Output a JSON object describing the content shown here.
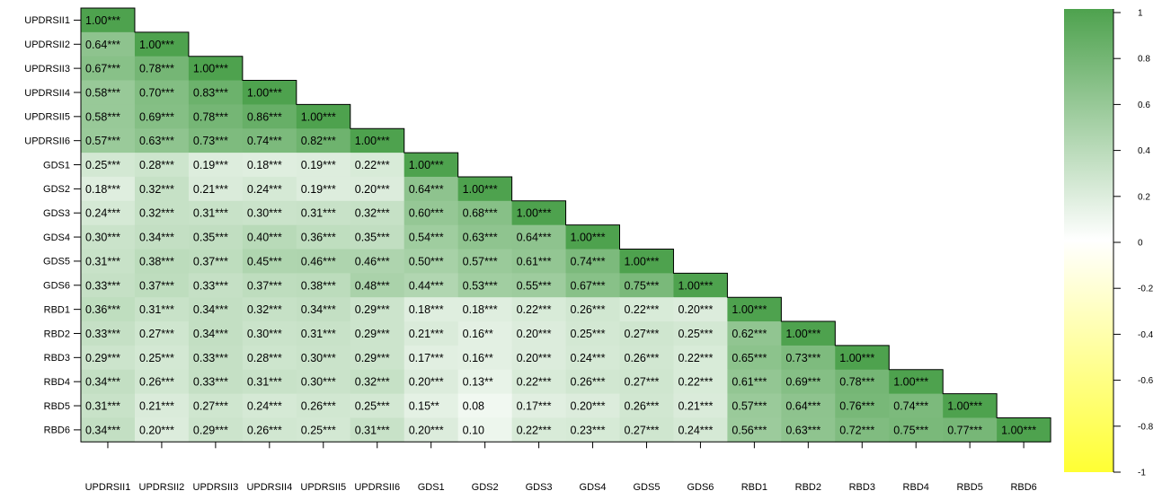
{
  "chart_data": {
    "type": "heatmap",
    "title": "",
    "layout": "lower-triangle",
    "row_labels": [
      "UPDRSII1",
      "UPDRSII2",
      "UPDRSII3",
      "UPDRSII4",
      "UPDRSII5",
      "UPDRSII6",
      "GDS1",
      "GDS2",
      "GDS3",
      "GDS4",
      "GDS5",
      "GDS6",
      "RBD1",
      "RBD2",
      "RBD3",
      "RBD4",
      "RBD5",
      "RBD6"
    ],
    "col_labels": [
      "UPDRSII1",
      "UPDRSII2",
      "UPDRSII3",
      "UPDRSII4",
      "UPDRSII5",
      "UPDRSII6",
      "GDS1",
      "GDS2",
      "GDS3",
      "GDS4",
      "GDS5",
      "GDS6",
      "RBD1",
      "RBD2",
      "RBD3",
      "RBD4",
      "RBD5",
      "RBD6"
    ],
    "cells": [
      [
        "1.00***"
      ],
      [
        "0.64***",
        "1.00***"
      ],
      [
        "0.67***",
        "0.78***",
        "1.00***"
      ],
      [
        "0.58***",
        "0.70***",
        "0.83***",
        "1.00***"
      ],
      [
        "0.58***",
        "0.69***",
        "0.78***",
        "0.86***",
        "1.00***"
      ],
      [
        "0.57***",
        "0.63***",
        "0.73***",
        "0.74***",
        "0.82***",
        "1.00***"
      ],
      [
        "0.25***",
        "0.28***",
        "0.19***",
        "0.18***",
        "0.19***",
        "0.22***",
        "1.00***"
      ],
      [
        "0.18***",
        "0.32***",
        "0.21***",
        "0.24***",
        "0.19***",
        "0.20***",
        "0.64***",
        "1.00***"
      ],
      [
        "0.24***",
        "0.32***",
        "0.31***",
        "0.30***",
        "0.31***",
        "0.32***",
        "0.60***",
        "0.68***",
        "1.00***"
      ],
      [
        "0.30***",
        "0.34***",
        "0.35***",
        "0.40***",
        "0.36***",
        "0.35***",
        "0.54***",
        "0.63***",
        "0.64***",
        "1.00***"
      ],
      [
        "0.31***",
        "0.38***",
        "0.37***",
        "0.45***",
        "0.46***",
        "0.46***",
        "0.50***",
        "0.57***",
        "0.61***",
        "0.74***",
        "1.00***"
      ],
      [
        "0.33***",
        "0.37***",
        "0.33***",
        "0.37***",
        "0.38***",
        "0.48***",
        "0.44***",
        "0.53***",
        "0.55***",
        "0.67***",
        "0.75***",
        "1.00***"
      ],
      [
        "0.36***",
        "0.31***",
        "0.34***",
        "0.32***",
        "0.34***",
        "0.29***",
        "0.18***",
        "0.18***",
        "0.22***",
        "0.26***",
        "0.22***",
        "0.20***",
        "1.00***"
      ],
      [
        "0.33***",
        "0.27***",
        "0.34***",
        "0.30***",
        "0.31***",
        "0.29***",
        "0.21***",
        "0.16**",
        "0.20***",
        "0.25***",
        "0.27***",
        "0.25***",
        "0.62***",
        "1.00***"
      ],
      [
        "0.29***",
        "0.25***",
        "0.33***",
        "0.28***",
        "0.30***",
        "0.29***",
        "0.17***",
        "0.16**",
        "0.20***",
        "0.24***",
        "0.26***",
        "0.22***",
        "0.65***",
        "0.73***",
        "1.00***"
      ],
      [
        "0.34***",
        "0.26***",
        "0.33***",
        "0.31***",
        "0.30***",
        "0.32***",
        "0.20***",
        "0.13**",
        "0.22***",
        "0.26***",
        "0.27***",
        "0.22***",
        "0.61***",
        "0.69***",
        "0.78***",
        "1.00***"
      ],
      [
        "0.31***",
        "0.21***",
        "0.27***",
        "0.24***",
        "0.26***",
        "0.25***",
        "0.15**",
        "0.08",
        "0.17***",
        "0.20***",
        "0.26***",
        "0.21***",
        "0.57***",
        "0.64***",
        "0.76***",
        "0.74***",
        "1.00***"
      ],
      [
        "0.34***",
        "0.20***",
        "0.29***",
        "0.26***",
        "0.25***",
        "0.31***",
        "0.20***",
        "0.10",
        "0.22***",
        "0.23***",
        "0.27***",
        "0.24***",
        "0.56***",
        "0.63***",
        "0.72***",
        "0.75***",
        "0.77***",
        "1.00***"
      ]
    ],
    "color_scale": {
      "min": -1,
      "max": 1,
      "low_color": "#ffff33",
      "mid_color": "#ffffff",
      "high_color": "#4ea24e",
      "ticks": [
        "1",
        "0.8",
        "0.6",
        "0.4",
        "0.2",
        "0",
        "-0.2",
        "-0.4",
        "-0.6",
        "-0.8",
        "-1"
      ]
    },
    "legend_placement": "right",
    "grid": false
  }
}
